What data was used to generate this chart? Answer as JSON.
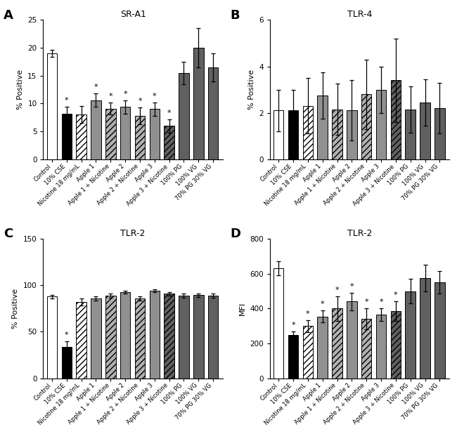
{
  "categories": [
    "Control",
    "10% CSE",
    "Nicotine 18 mg/mL",
    "Apple 1",
    "Apple 1 + Nicotine",
    "Apple 2",
    "Apple 2 + Nicotine",
    "Apple 3",
    "Apple 3 + Nicotine",
    "100% PG",
    "100% VG",
    "70% PG 30% VG"
  ],
  "panel_A": {
    "title": "SR-A1",
    "ylabel": "% Positive",
    "ylim": [
      0,
      25
    ],
    "yticks": [
      0,
      5,
      10,
      15,
      20,
      25
    ],
    "values": [
      19.0,
      8.2,
      8.0,
      10.6,
      9.1,
      9.4,
      7.8,
      9.0,
      6.0,
      15.5,
      20.0,
      16.5
    ],
    "errors": [
      0.6,
      1.2,
      1.5,
      1.2,
      1.1,
      1.2,
      1.5,
      1.2,
      1.2,
      2.0,
      3.5,
      2.5
    ],
    "sig": [
      false,
      true,
      false,
      true,
      true,
      true,
      true,
      true,
      true,
      false,
      false,
      false
    ]
  },
  "panel_B": {
    "title": "TLR-4",
    "ylabel": "% Positive",
    "ylim": [
      0,
      6
    ],
    "yticks": [
      0,
      2,
      4,
      6
    ],
    "values": [
      2.1,
      2.1,
      2.3,
      2.75,
      2.15,
      2.1,
      2.8,
      3.0,
      3.4,
      2.15,
      2.45,
      2.2
    ],
    "errors": [
      0.9,
      0.9,
      1.2,
      1.0,
      1.1,
      1.3,
      1.5,
      1.0,
      1.8,
      1.0,
      1.0,
      1.1
    ],
    "sig": [
      false,
      false,
      false,
      false,
      false,
      false,
      false,
      false,
      false,
      false,
      false,
      false
    ]
  },
  "panel_C": {
    "title": "TLR-2",
    "ylabel": "% Positive",
    "ylim": [
      0,
      150
    ],
    "yticks": [
      0,
      50,
      100,
      150
    ],
    "values": [
      88.0,
      34.0,
      82.0,
      86.0,
      89.0,
      93.0,
      86.0,
      94.0,
      91.0,
      89.0,
      89.5,
      89.0
    ],
    "errors": [
      2.0,
      6.0,
      4.0,
      2.5,
      2.0,
      1.5,
      2.5,
      1.5,
      2.0,
      2.0,
      2.0,
      2.5
    ],
    "sig": [
      false,
      true,
      false,
      false,
      false,
      false,
      false,
      false,
      false,
      false,
      false,
      false
    ]
  },
  "panel_D": {
    "title": "TLR-2",
    "ylabel": "MFI",
    "ylim": [
      0,
      800
    ],
    "yticks": [
      0,
      200,
      400,
      600,
      800
    ],
    "values": [
      630,
      250,
      300,
      355,
      400,
      440,
      340,
      365,
      385,
      500,
      575,
      550
    ],
    "errors": [
      40,
      20,
      35,
      35,
      70,
      50,
      60,
      35,
      55,
      70,
      75,
      65
    ],
    "sig": [
      false,
      true,
      true,
      true,
      true,
      true,
      true,
      true,
      true,
      false,
      false,
      false
    ]
  },
  "bar_styles": [
    {
      "facecolor": "white",
      "edgecolor": "black",
      "hatch": ""
    },
    {
      "facecolor": "black",
      "edgecolor": "black",
      "hatch": ""
    },
    {
      "facecolor": "white",
      "edgecolor": "black",
      "hatch": "////"
    },
    {
      "facecolor": "#909090",
      "edgecolor": "black",
      "hatch": ""
    },
    {
      "facecolor": "#b0b0b0",
      "edgecolor": "black",
      "hatch": "////"
    },
    {
      "facecolor": "#909090",
      "edgecolor": "black",
      "hatch": ""
    },
    {
      "facecolor": "#b0b0b0",
      "edgecolor": "black",
      "hatch": "////"
    },
    {
      "facecolor": "#909090",
      "edgecolor": "black",
      "hatch": ""
    },
    {
      "facecolor": "#606060",
      "edgecolor": "black",
      "hatch": "////"
    },
    {
      "facecolor": "#606060",
      "edgecolor": "black",
      "hatch": ""
    },
    {
      "facecolor": "#606060",
      "edgecolor": "black",
      "hatch": ""
    },
    {
      "facecolor": "#606060",
      "edgecolor": "black",
      "hatch": ""
    }
  ]
}
